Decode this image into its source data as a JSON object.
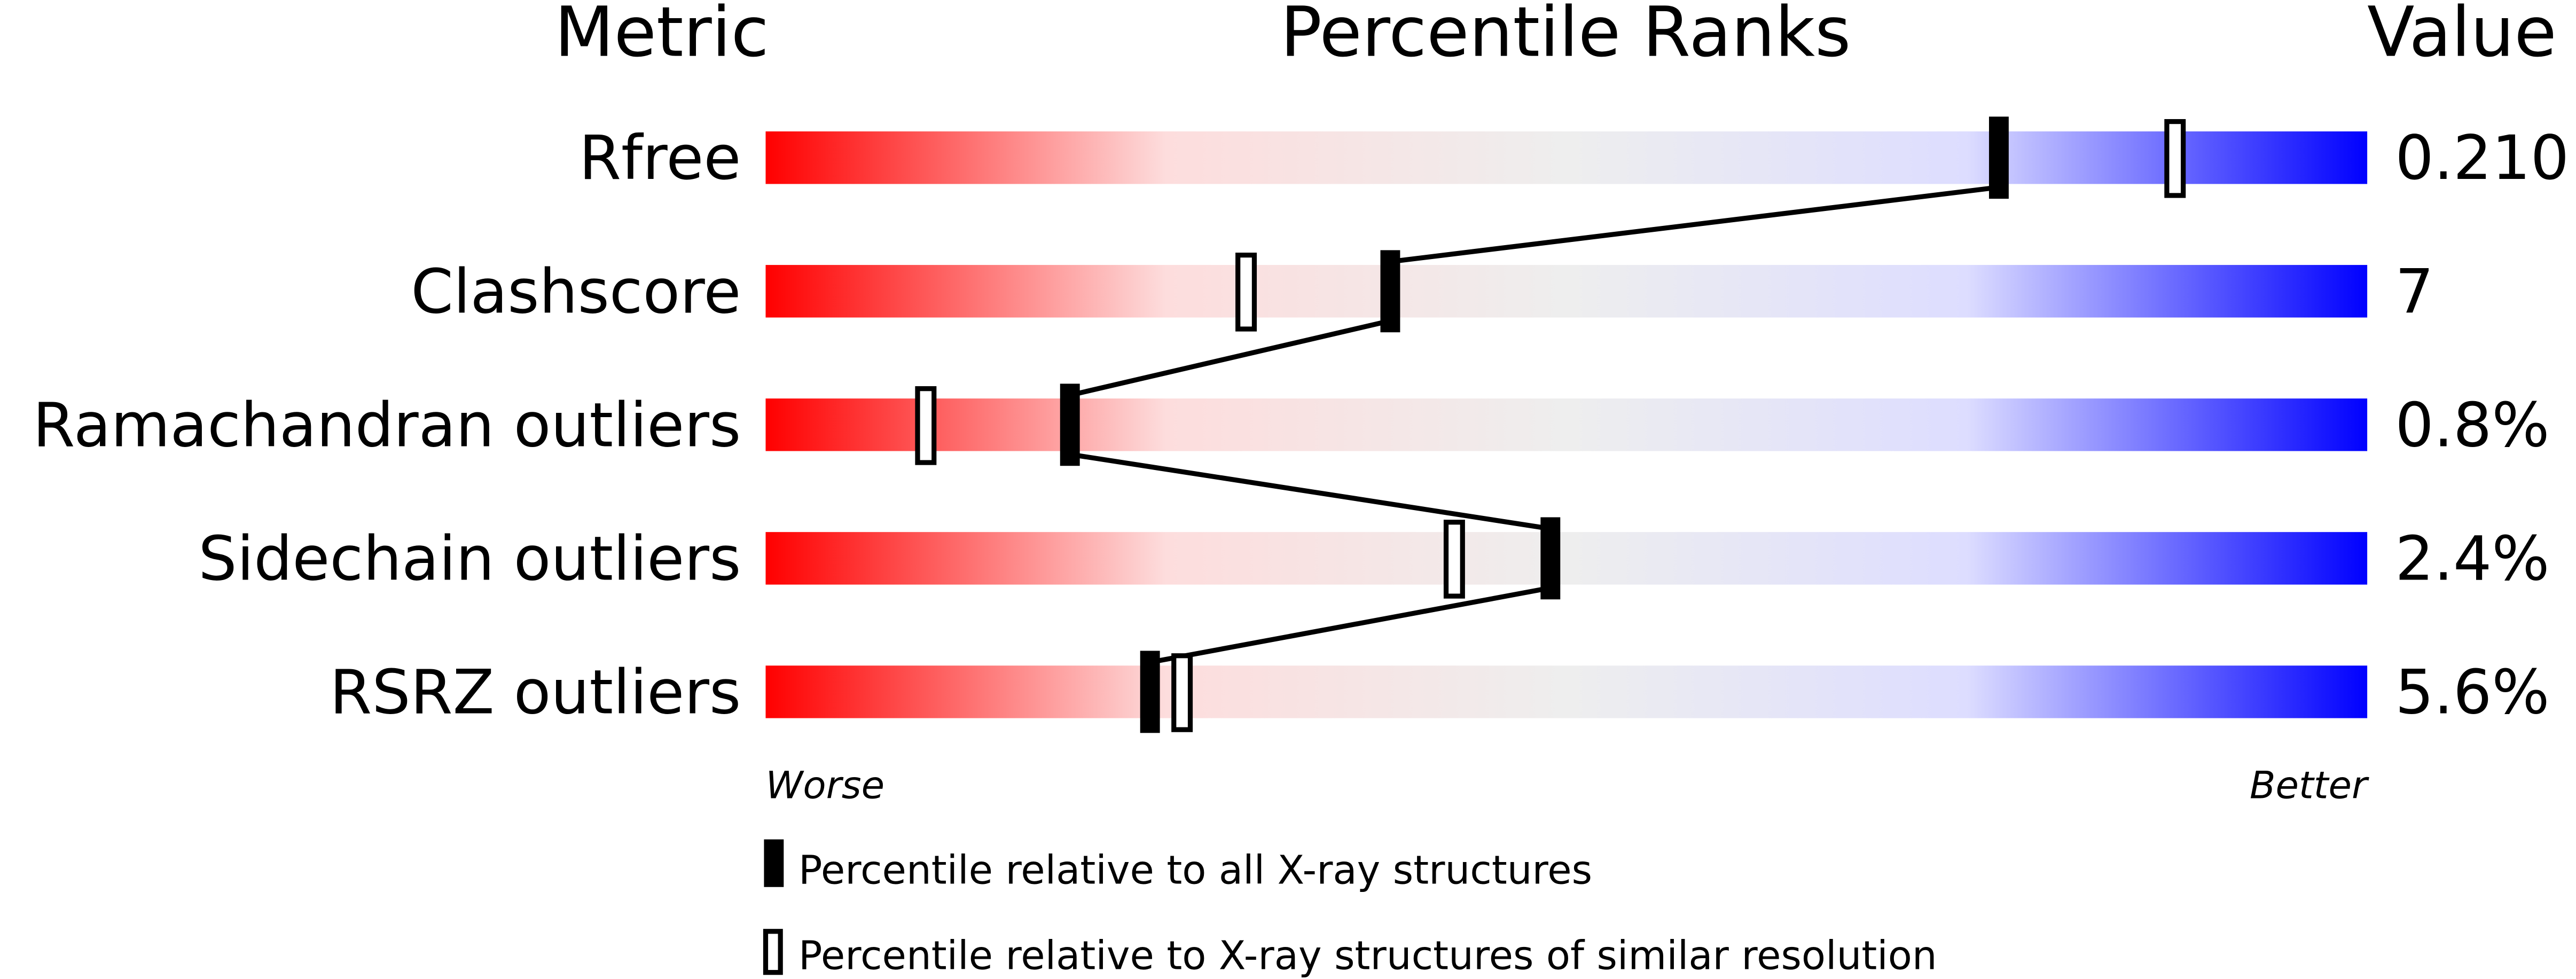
{
  "chart_data": {
    "type": "percentile-bar",
    "headers": {
      "metric": "Metric",
      "ranks": "Percentile Ranks",
      "value": "Value"
    },
    "xlim": [
      0,
      100
    ],
    "scale_labels": {
      "left": "Worse",
      "right": "Better"
    },
    "gradient_colors": [
      "#ff0000",
      "#fddddd",
      "#eeeeee",
      "#ddddff",
      "#0000ff"
    ],
    "rows": [
      {
        "metric": "Rfree",
        "value": "0.210",
        "percentile_all": 77,
        "percentile_similar": 88
      },
      {
        "metric": "Clashscore",
        "value": "7",
        "percentile_all": 39,
        "percentile_similar": 30
      },
      {
        "metric": "Ramachandran outliers",
        "value": "0.8%",
        "percentile_all": 19,
        "percentile_similar": 10
      },
      {
        "metric": "Sidechain outliers",
        "value": "2.4%",
        "percentile_all": 49,
        "percentile_similar": 43
      },
      {
        "metric": "RSRZ outliers",
        "value": "5.6%",
        "percentile_all": 24,
        "percentile_similar": 26
      }
    ],
    "legend": [
      {
        "marker": "filled",
        "label": "Percentile relative to all X-ray structures"
      },
      {
        "marker": "open",
        "label": "Percentile relative to X-ray structures of similar resolution"
      }
    ]
  }
}
